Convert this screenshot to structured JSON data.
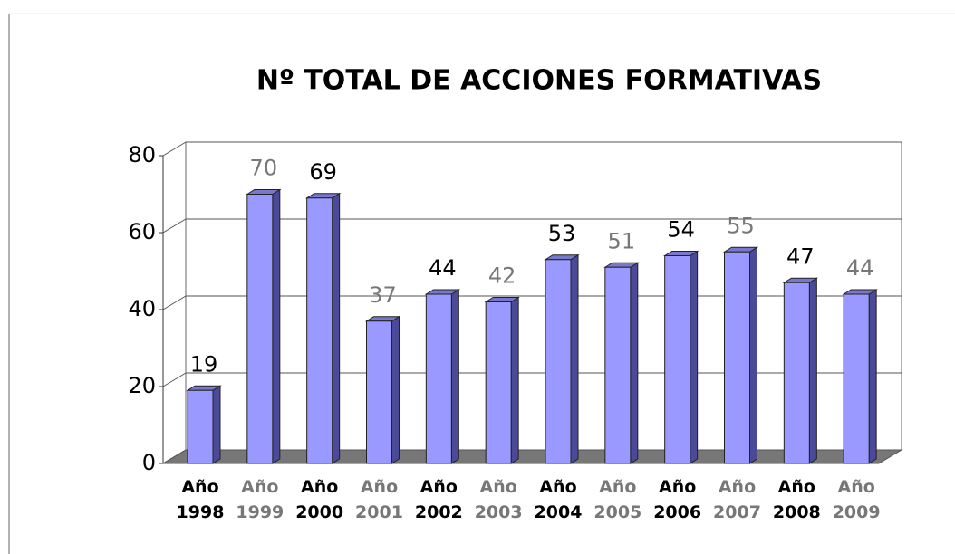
{
  "chart_data": {
    "type": "bar3d",
    "title": "Nº TOTAL DE ACCIONES FORMATIVAS",
    "categories": [
      "Año 1998",
      "Año 1999",
      "Año 2000",
      "Año 2001",
      "Año 2002",
      "Año 2003",
      "Año 2004",
      "Año 2005",
      "Año 2006",
      "Año 2007",
      "Año 2008",
      "Año 2009"
    ],
    "values": [
      19,
      70,
      69,
      37,
      44,
      42,
      53,
      51,
      54,
      55,
      47,
      44
    ],
    "color": "#9999ff",
    "label_colors": [
      "#000000",
      "#777777"
    ],
    "ylim": [
      0,
      80
    ],
    "yticks": [
      0,
      20,
      40,
      60,
      80
    ],
    "grid": true
  }
}
